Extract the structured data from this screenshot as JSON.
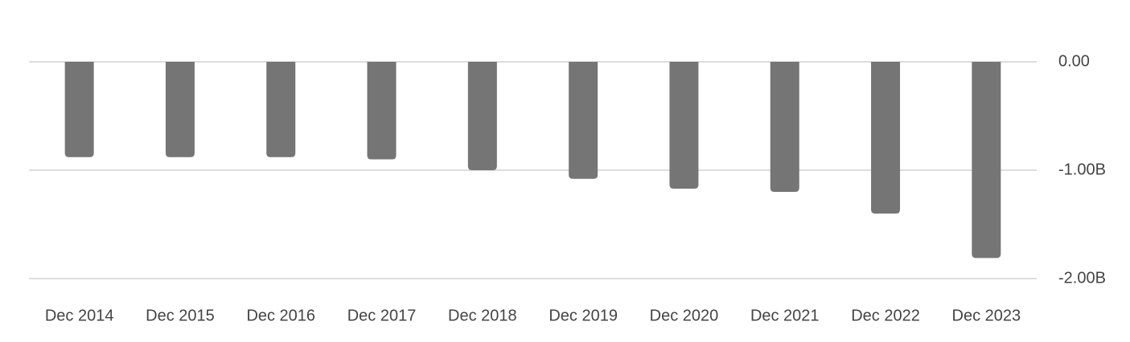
{
  "chart_data": {
    "type": "bar",
    "categories": [
      "Dec 2014",
      "Dec 2015",
      "Dec 2016",
      "Dec 2017",
      "Dec 2018",
      "Dec 2019",
      "Dec 2020",
      "Dec 2021",
      "Dec 2022",
      "Dec 2023"
    ],
    "values": [
      -880000000,
      -880000000,
      -880000000,
      -900000000,
      -1000000000,
      -1080000000,
      -1170000000,
      -1200000000,
      -1400000000,
      -1810000000
    ],
    "color": "#757575",
    "ylim": [
      -2000000000,
      0
    ],
    "yticks": [
      {
        "value": 0,
        "label": "0.00"
      },
      {
        "value": -1000000000,
        "label": "-1.00B"
      },
      {
        "value": -2000000000,
        "label": "-2.00B"
      }
    ],
    "grid": true,
    "y_axis_side": "right"
  }
}
